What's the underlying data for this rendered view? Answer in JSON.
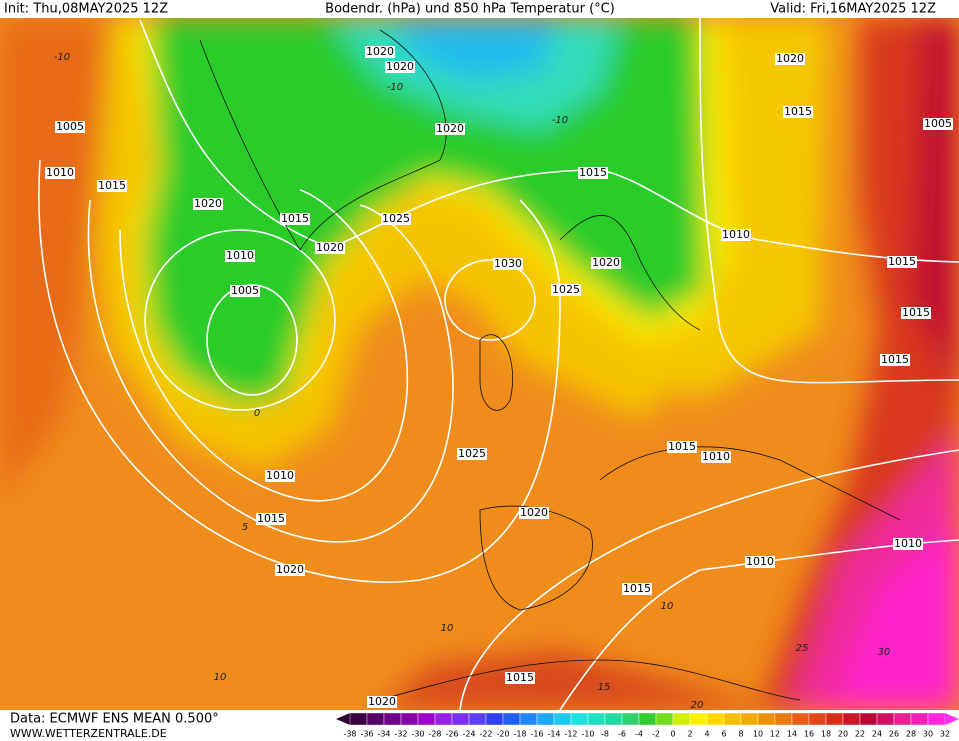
{
  "header": {
    "init": "Init: Thu,08MAY2025 12Z",
    "title": "Bodendr. (hPa) und 850 hPa Temperatur (°C)",
    "valid": "Valid: Fri,16MAY2025 12Z"
  },
  "footer": {
    "data": "Data: ECMWF ENS MEAN 0.500°",
    "site": "WWW.WETTERZENTRALE.DE"
  },
  "colorbar": {
    "labels": [
      "-38",
      "-36",
      "-34",
      "-32",
      "-30",
      "-28",
      "-26",
      "-24",
      "-22",
      "-20",
      "-18",
      "-16",
      "-14",
      "-12",
      "-10",
      "-8",
      "-6",
      "-4",
      "-2",
      "0",
      "2",
      "4",
      "6",
      "8",
      "10",
      "12",
      "14",
      "16",
      "18",
      "20",
      "22",
      "24",
      "26",
      "28",
      "30",
      "32"
    ]
  },
  "map": {
    "isobar_labels": [
      "1020",
      "1020",
      "1020",
      "1005",
      "1010",
      "1015",
      "1020",
      "1015",
      "1025",
      "1020",
      "1010",
      "1005",
      "1030",
      "1025",
      "1015",
      "1020",
      "1010",
      "1020",
      "1015",
      "1005",
      "1015",
      "1015",
      "1015",
      "1015",
      "1010",
      "1025",
      "1010",
      "1015",
      "1020",
      "1020",
      "1010",
      "1010",
      "1015",
      "1015",
      "1020"
    ],
    "temperature_labels": [
      "-10",
      "-10",
      "-10",
      "0",
      "5",
      "10",
      "10",
      "10",
      "15",
      "20",
      "25",
      "30"
    ]
  }
}
